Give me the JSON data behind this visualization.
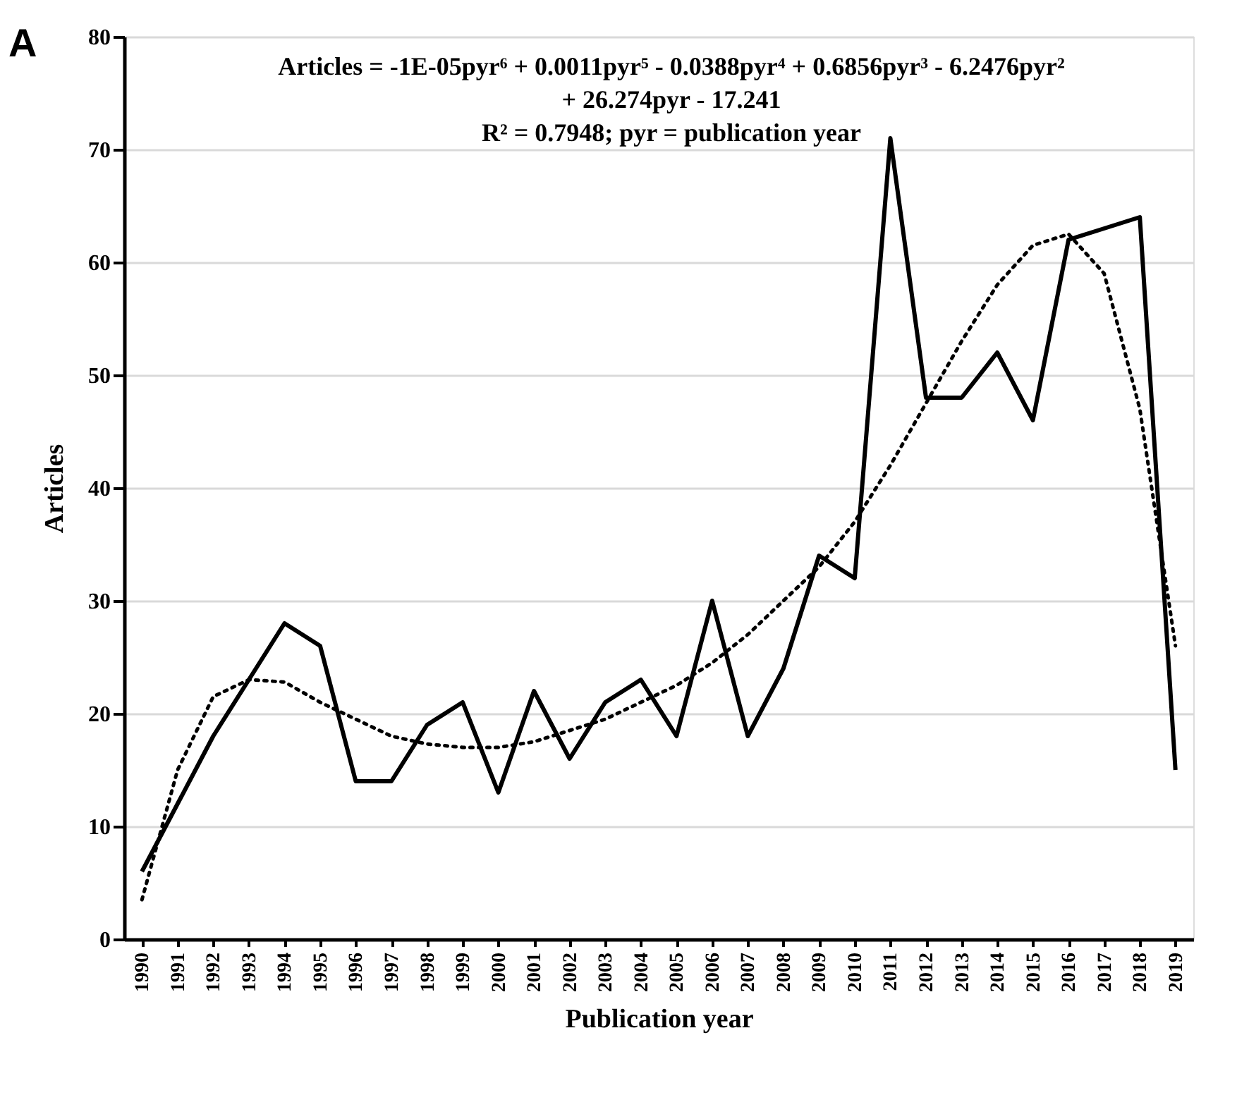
{
  "chart_data": {
    "type": "line",
    "xlabel": "Publication year",
    "ylabel": "Articles",
    "categories": [
      "1990",
      "1991",
      "1992",
      "1993",
      "1994",
      "1995",
      "1996",
      "1997",
      "1998",
      "1999",
      "2000",
      "2001",
      "2002",
      "2003",
      "2004",
      "2005",
      "2006",
      "2007",
      "2008",
      "2009",
      "2010",
      "2011",
      "2012",
      "2013",
      "2014",
      "2015",
      "2016",
      "2017",
      "2018",
      "2019"
    ],
    "series": [
      {
        "color": "#000000",
        "line_style": "solid",
        "values": [
          6,
          12,
          18,
          23,
          28,
          26,
          14,
          14,
          19,
          21,
          13,
          22,
          16,
          21,
          23,
          18,
          30,
          18,
          24,
          34,
          32,
          71,
          48,
          48,
          52,
          46,
          62,
          63,
          64,
          15
        ]
      },
      {
        "color": "#000000",
        "line_style": "dotted",
        "values": [
          3.5,
          15,
          21.5,
          23,
          22.8,
          21,
          19.5,
          18,
          17.3,
          17,
          17,
          17.5,
          18.5,
          19.5,
          21,
          22.5,
          24.5,
          27,
          30,
          33,
          37,
          42,
          47.5,
          53,
          58,
          61.5,
          62.5,
          59,
          47,
          26
        ]
      }
    ],
    "ylim": [
      0,
      80
    ],
    "yticks": [
      0,
      10,
      20,
      30,
      40,
      50,
      60,
      70,
      80
    ],
    "grid": "y",
    "marker": "none",
    "annotations": [
      "A",
      "Articles = -1E-05pyr⁶ + 0.0011pyr⁵ - 0.0388pyr⁴ + 0.6856pyr³ - 6.2476pyr²",
      "+ 26.274pyr - 17.241",
      "R² = 0.7948; pyr = publication year"
    ]
  }
}
